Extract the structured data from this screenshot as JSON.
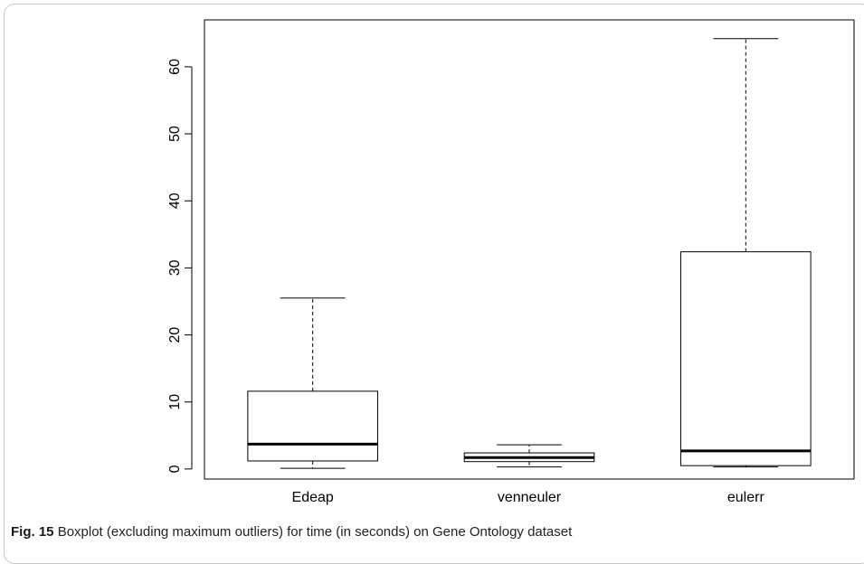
{
  "caption": {
    "label": "Fig. 15",
    "text": "Boxplot (excluding maximum outliers) for time (in seconds) on Gene Ontology dataset"
  },
  "chart_data": {
    "type": "boxplot",
    "title": "",
    "xlabel": "",
    "ylabel": "",
    "categories": [
      "Edeap",
      "venneuler",
      "eulerr"
    ],
    "boxes": [
      {
        "name": "Edeap",
        "whisker_low": 0.1,
        "q1": 1.2,
        "median": 3.7,
        "q3": 11.6,
        "whisker_high": 25.5
      },
      {
        "name": "venneuler",
        "whisker_low": 0.3,
        "q1": 1.1,
        "median": 1.7,
        "q3": 2.4,
        "whisker_high": 3.6
      },
      {
        "name": "eulerr",
        "whisker_low": 0.3,
        "q1": 0.5,
        "median": 2.7,
        "q3": 32.4,
        "whisker_high": 64.2
      }
    ],
    "y_ticks": [
      0,
      10,
      20,
      30,
      40,
      50,
      60
    ],
    "ylim": [
      -1.5,
      67
    ],
    "grid": false
  }
}
